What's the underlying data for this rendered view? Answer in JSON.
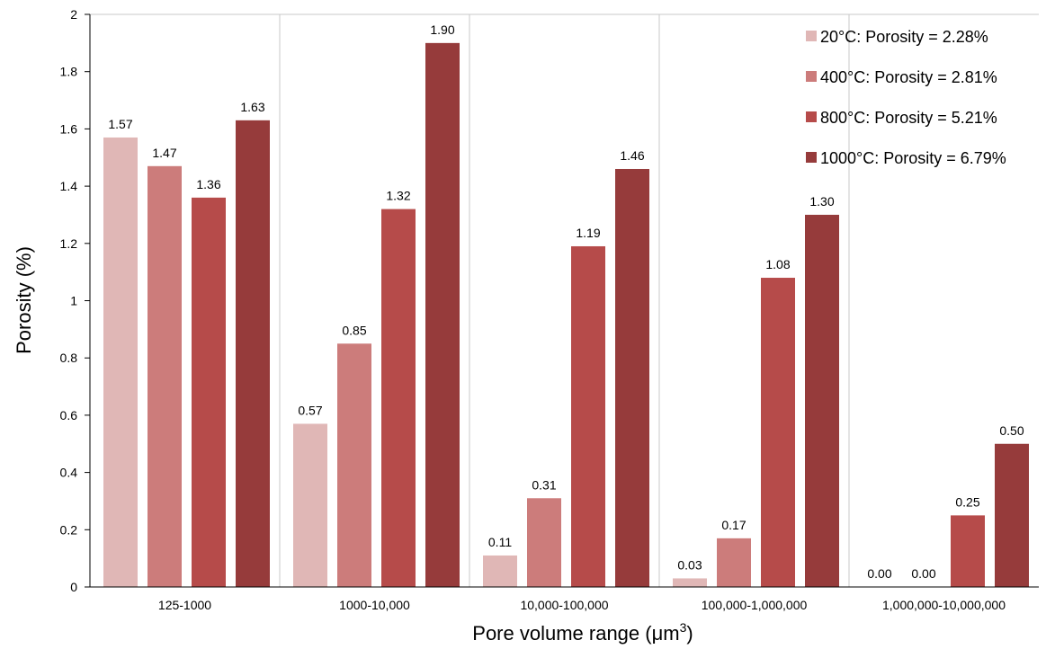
{
  "chart_data": {
    "type": "bar",
    "title": "",
    "xlabel": "Pore volume range (μm",
    "xlabel_sup": "3",
    "xlabel_close": ")",
    "ylabel": "Porosity (%)",
    "ylim": [
      0,
      2
    ],
    "yticks": [
      "0",
      "0.2",
      "0.4",
      "0.6",
      "0.8",
      "1",
      "1.2",
      "1.4",
      "1.6",
      "1.8",
      "2"
    ],
    "grid": "vertical separators between categories",
    "legend_position": "top-right",
    "categories": [
      "125-1000",
      "1000-10,000",
      "10,000-100,000",
      "100,000-1,000,000",
      "1,000,000-10,000,000"
    ],
    "series": [
      {
        "name": "20°C: Porosity = 2.28%",
        "color": "#e0b7b6",
        "values": [
          1.57,
          0.57,
          0.11,
          0.03,
          0.0
        ],
        "labels": [
          "1.57",
          "0.57",
          "0.11",
          "0.03",
          "0.00"
        ]
      },
      {
        "name": "400°C: Porosity = 2.81%",
        "color": "#cc7c7b",
        "values": [
          1.47,
          0.85,
          0.31,
          0.17,
          0.0
        ],
        "labels": [
          "1.47",
          "0.85",
          "0.31",
          "0.17",
          "0.00"
        ]
      },
      {
        "name": "800°C: Porosity = 5.21%",
        "color": "#b64b4a",
        "values": [
          1.36,
          1.32,
          1.19,
          1.08,
          0.25
        ],
        "labels": [
          "1.36",
          "1.32",
          "1.19",
          "1.08",
          "0.25"
        ]
      },
      {
        "name": "1000°C: Porosity = 6.79%",
        "color": "#963b3b",
        "values": [
          1.63,
          1.9,
          1.46,
          1.3,
          0.5
        ],
        "labels": [
          "1.63",
          "1.90",
          "1.46",
          "1.30",
          "0.50"
        ]
      }
    ]
  }
}
